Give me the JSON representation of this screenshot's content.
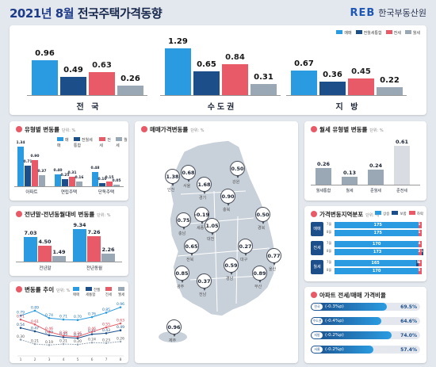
{
  "header": {
    "year_month": "2021년 8월",
    "title": "전국주택가격동향",
    "brand_logo": "REB",
    "brand_name": "한국부동산원"
  },
  "top_legend": [
    {
      "label": "매매",
      "color": "#2a9be0"
    },
    {
      "label": "전월세통합",
      "color": "#1c4e8a"
    },
    {
      "label": "전세",
      "color": "#e85a67"
    },
    {
      "label": "월세",
      "color": "#9aa7b5"
    }
  ],
  "chart_data": [
    {
      "type": "bar",
      "id": "summary",
      "categories": [
        "전 국",
        "수도권",
        "지 방"
      ],
      "series": [
        {
          "name": "매매",
          "values": [
            0.96,
            1.29,
            0.67
          ]
        },
        {
          "name": "전월세통합",
          "values": [
            0.49,
            0.65,
            0.36
          ]
        },
        {
          "name": "전세",
          "values": [
            0.63,
            0.84,
            0.45
          ]
        },
        {
          "name": "월세",
          "values": [
            0.26,
            0.31,
            0.22
          ]
        }
      ]
    },
    {
      "type": "bar",
      "id": "type_change",
      "title": "유형별 변동률",
      "unit": "단위: %",
      "categories": [
        "아파트",
        "연립주택",
        "단독주택"
      ],
      "series": [
        {
          "name": "매매",
          "values": [
            1.34,
            0.4,
            0.48
          ]
        },
        {
          "name": "전월세통합",
          "values": [
            0.71,
            0.25,
            0.1
          ]
        },
        {
          "name": "전세",
          "values": [
            0.9,
            0.31,
            0.15
          ]
        },
        {
          "name": "월세",
          "values": [
            0.37,
            0.16,
            0.05
          ]
        }
      ]
    },
    {
      "type": "bar",
      "id": "monthly_rent_type",
      "title": "월세 유형별 변동률",
      "unit": "단위: %",
      "categories": [
        "월세통합",
        "월세",
        "준월세",
        "준전세"
      ],
      "values": [
        0.26,
        0.13,
        0.24,
        0.61
      ]
    },
    {
      "type": "bar",
      "id": "yoy",
      "title": "전년말·전년동월대비 변동률",
      "unit": "단위: %",
      "categories": [
        "전년말",
        "전년동월"
      ],
      "series": [
        {
          "name": "매매",
          "values": [
            7.03,
            9.34
          ]
        },
        {
          "name": "전세",
          "values": [
            4.5,
            7.26
          ]
        },
        {
          "name": "월세",
          "values": [
            1.49,
            2.26
          ]
        }
      ]
    },
    {
      "type": "line",
      "id": "trend",
      "title": "변동률 추이",
      "unit": "단위: %",
      "x": [
        "1",
        "2",
        "3",
        "4",
        "5",
        "6",
        "7",
        "8"
      ],
      "series": [
        {
          "name": "매매",
          "values": [
            0.79,
            0.89,
            0.74,
            0.71,
            0.7,
            0.76,
            0.85,
            0.96
          ]
        },
        {
          "name": "전월세통합",
          "values": [
            0.54,
            0.47,
            0.39,
            0.35,
            0.33,
            0.41,
            0.43,
            0.49
          ]
        },
        {
          "name": "전세",
          "values": [
            0.71,
            0.61,
            0.46,
            0.38,
            0.36,
            0.46,
            0.55,
            0.63
          ]
        },
        {
          "name": "월세",
          "values": [
            0.3,
            0.21,
            0.19,
            0.21,
            0.2,
            0.24,
            0.23,
            0.26
          ]
        }
      ],
      "ylim": [
        0,
        1.1
      ]
    },
    {
      "type": "bar",
      "id": "distribution",
      "title": "가격변동지역분포",
      "unit": "단위: 개",
      "groups": [
        "매매",
        "전세",
        "월세"
      ],
      "months": [
        "7월",
        "8월"
      ],
      "rows": [
        {
          "group": "매매",
          "month": "7월",
          "up": 175,
          "flat": 0,
          "down": 1
        },
        {
          "group": "매매",
          "month": "8월",
          "up": 175,
          "flat": 0,
          "down": 1
        },
        {
          "group": "전세",
          "month": "7월",
          "up": 170,
          "flat": 2,
          "down": 4
        },
        {
          "group": "전세",
          "month": "8월",
          "up": 173,
          "flat": 1,
          "down": 2
        },
        {
          "group": "월세",
          "month": "7월",
          "up": 165,
          "flat": 5,
          "down": 6
        },
        {
          "group": "월세",
          "month": "8월",
          "up": 170,
          "flat": 1,
          "down": 5
        }
      ]
    },
    {
      "type": "bar",
      "id": "apt_ratio",
      "title": "아파트 전세/매매 가격비율",
      "categories": [
        "전국",
        "수도권",
        "지방",
        "서울"
      ],
      "change_labels": [
        "(-0.3%p)",
        "(-0.4%p)",
        "(-0.2%p)",
        "(-0.2%p)"
      ],
      "values": [
        69.5,
        64.6,
        74.0,
        57.4
      ],
      "value_labels": [
        "69.5%",
        "64.6%",
        "74.0%",
        "57.4%"
      ]
    }
  ],
  "map": {
    "title": "매매가격변동률",
    "unit": "단위: %",
    "regions": [
      {
        "name": "인천",
        "value": "1.38"
      },
      {
        "name": "서울",
        "value": "0.68"
      },
      {
        "name": "경기",
        "value": "1.68"
      },
      {
        "name": "강원",
        "value": "0.50"
      },
      {
        "name": "충북",
        "value": "0.90"
      },
      {
        "name": "충남",
        "value": "0.75"
      },
      {
        "name": "세종",
        "value": "-0.19"
      },
      {
        "name": "대전",
        "value": "1.05"
      },
      {
        "name": "경북",
        "value": "0.50"
      },
      {
        "name": "전북",
        "value": "0.65"
      },
      {
        "name": "대구",
        "value": "0.27"
      },
      {
        "name": "울산",
        "value": "0.77"
      },
      {
        "name": "경남",
        "value": "0.59"
      },
      {
        "name": "부산",
        "value": "0.89"
      },
      {
        "name": "광주",
        "value": "0.85"
      },
      {
        "name": "전남",
        "value": "0.37"
      },
      {
        "name": "제주",
        "value": "0.96"
      }
    ]
  },
  "small_legend": [
    "매매",
    "전월세통합",
    "전세",
    "월세"
  ],
  "dist_legend": [
    "상승",
    "보합",
    "하락"
  ]
}
